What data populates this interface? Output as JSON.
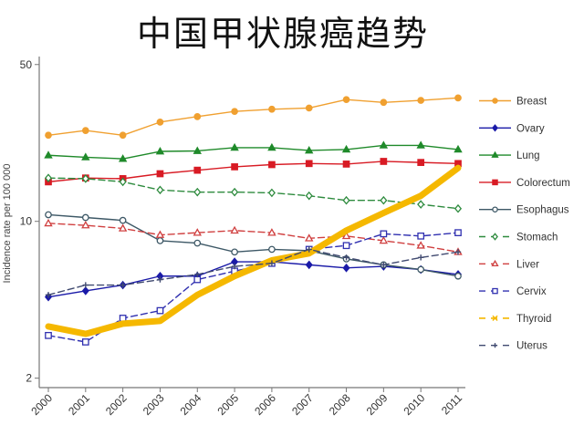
{
  "chart_data": {
    "type": "line",
    "title": "中国甲状腺癌趋势",
    "xlabel": "",
    "ylabel": "Incidence rate per 100 000",
    "yscale": "log",
    "ylim": [
      2,
      50
    ],
    "yticks": [
      2,
      10,
      50
    ],
    "x": [
      2000,
      2001,
      2002,
      2003,
      2004,
      2005,
      2006,
      2007,
      2008,
      2009,
      2010,
      2011
    ],
    "grid": false,
    "legend_position": "right",
    "series": [
      {
        "name": "Breast",
        "color": "#f0a030",
        "marker": "circle-filled",
        "dash": false,
        "values": [
          24.2,
          25.4,
          24.2,
          27.7,
          29.3,
          30.9,
          31.6,
          32.0,
          34.9,
          33.9,
          34.6,
          35.5
        ]
      },
      {
        "name": "Ovary",
        "color": "#1a1aa8",
        "marker": "diamond-filled",
        "dash": false,
        "values": [
          4.6,
          4.9,
          5.2,
          5.7,
          5.7,
          6.6,
          6.6,
          6.4,
          6.2,
          6.3,
          6.1,
          5.8
        ]
      },
      {
        "name": "Lung",
        "color": "#1f8a2a",
        "marker": "triangle-filled",
        "dash": false,
        "values": [
          19.7,
          19.3,
          19.0,
          20.5,
          20.6,
          21.3,
          21.3,
          20.7,
          20.9,
          21.8,
          21.8,
          20.9
        ]
      },
      {
        "name": "Colorectum",
        "color": "#d81b24",
        "marker": "square-filled",
        "dash": false,
        "values": [
          15.0,
          15.6,
          15.5,
          16.3,
          16.9,
          17.5,
          17.9,
          18.1,
          18.0,
          18.5,
          18.3,
          18.1
        ]
      },
      {
        "name": "Esophagus",
        "color": "#3d5866",
        "marker": "circle-open",
        "dash": false,
        "values": [
          10.7,
          10.4,
          10.1,
          8.2,
          8.0,
          7.3,
          7.5,
          7.4,
          6.8,
          6.4,
          6.1,
          5.7
        ]
      },
      {
        "name": "Stomach",
        "color": "#2e8b3e",
        "marker": "diamond-open",
        "dash": true,
        "values": [
          15.6,
          15.5,
          15.0,
          13.8,
          13.5,
          13.5,
          13.4,
          13.0,
          12.4,
          12.4,
          11.9,
          11.4
        ]
      },
      {
        "name": "Liver",
        "color": "#d04040",
        "marker": "triangle-open",
        "dash": true,
        "values": [
          9.8,
          9.6,
          9.3,
          8.7,
          8.9,
          9.1,
          8.9,
          8.4,
          8.6,
          8.2,
          7.8,
          7.3
        ]
      },
      {
        "name": "Cervix",
        "color": "#3030b0",
        "marker": "square-open",
        "dash": true,
        "values": [
          3.1,
          2.9,
          3.7,
          4.0,
          5.5,
          6.0,
          6.5,
          7.5,
          7.8,
          8.8,
          8.6,
          8.9
        ]
      },
      {
        "name": "Thyroid",
        "color": "#f5b800",
        "marker": "x",
        "dash": true,
        "thick": true,
        "values": [
          3.4,
          3.15,
          3.5,
          3.6,
          4.7,
          5.7,
          6.7,
          7.2,
          9.1,
          10.9,
          13.0,
          17.3
        ]
      },
      {
        "name": "Uterus",
        "color": "#404a70",
        "marker": "plus",
        "dash": true,
        "values": [
          4.7,
          5.2,
          5.2,
          5.5,
          5.8,
          6.3,
          6.5,
          7.5,
          6.9,
          6.4,
          6.9,
          7.3
        ]
      }
    ]
  }
}
